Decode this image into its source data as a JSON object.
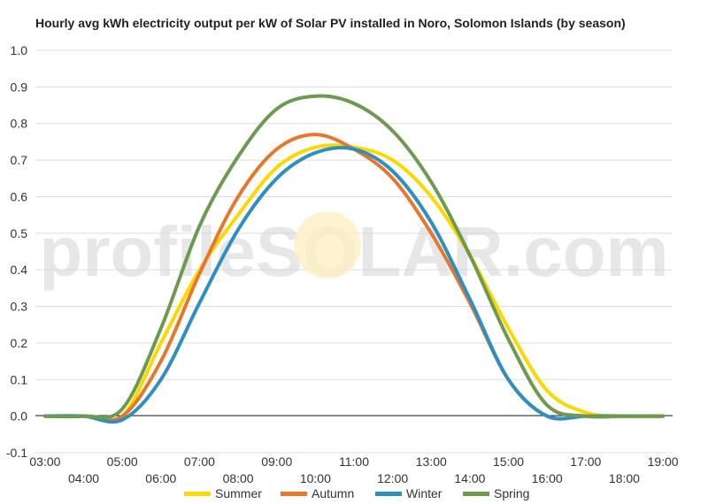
{
  "chart_data": {
    "type": "line",
    "title": "Hourly avg kWh electricity output per kW of Solar PV installed in Noro, Solomon Islands (by season)",
    "watermark": "profileSOLAR.com",
    "xlabel": "",
    "ylabel": "",
    "ylim": [
      -0.1,
      1.0
    ],
    "y_ticks": [
      "-0.1",
      "0.0",
      "0.1",
      "0.2",
      "0.3",
      "0.4",
      "0.5",
      "0.6",
      "0.7",
      "0.8",
      "0.9",
      "1.0"
    ],
    "x_ticks": [
      "03:00",
      "04:00",
      "05:00",
      "06:00",
      "07:00",
      "08:00",
      "09:00",
      "10:00",
      "11:00",
      "12:00",
      "13:00",
      "14:00",
      "15:00",
      "16:00",
      "17:00",
      "18:00",
      "19:00"
    ],
    "grid": true,
    "legend_position": "bottom",
    "x": [
      3,
      4,
      5,
      6,
      7,
      8,
      9,
      10,
      11,
      12,
      13,
      14,
      15,
      16,
      17,
      18,
      19
    ],
    "series": [
      {
        "name": "Summer",
        "color": "#FFD700",
        "values": [
          0.0,
          0.0,
          0.0,
          0.2,
          0.4,
          0.55,
          0.68,
          0.735,
          0.735,
          0.7,
          0.6,
          0.44,
          0.24,
          0.07,
          0.01,
          0.0,
          0.0
        ]
      },
      {
        "name": "Autumn",
        "color": "#E8772E",
        "values": [
          0.0,
          0.0,
          0.0,
          0.15,
          0.39,
          0.6,
          0.73,
          0.77,
          0.73,
          0.65,
          0.5,
          0.31,
          0.1,
          0.0,
          0.0,
          0.0,
          0.0
        ]
      },
      {
        "name": "Winter",
        "color": "#2E8FC0",
        "values": [
          0.0,
          0.0,
          -0.01,
          0.1,
          0.31,
          0.51,
          0.65,
          0.72,
          0.73,
          0.67,
          0.53,
          0.32,
          0.1,
          0.0,
          0.0,
          0.0,
          0.0
        ]
      },
      {
        "name": "Spring",
        "color": "#6E9A50",
        "values": [
          0.0,
          0.0,
          0.02,
          0.24,
          0.52,
          0.71,
          0.84,
          0.875,
          0.855,
          0.78,
          0.64,
          0.44,
          0.21,
          0.03,
          0.0,
          0.0,
          0.0
        ]
      }
    ]
  }
}
